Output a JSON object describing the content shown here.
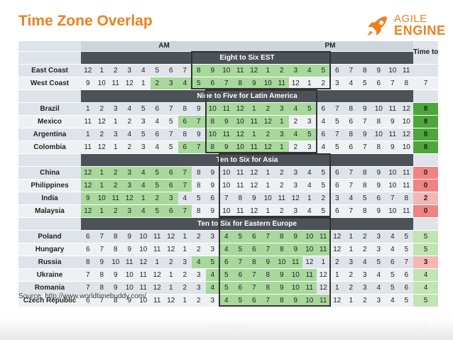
{
  "title": "Time Zone Overlap",
  "logo": {
    "line1": "AGILE",
    "line2": "ENGINE"
  },
  "header": {
    "am": "AM",
    "pm": "PM",
    "time_to_coop": "Time to coop."
  },
  "sections": [
    {
      "label": "Eight to Six EST",
      "rows": [
        {
          "name": "East Coast",
          "hours": [
            "12",
            "1",
            "2",
            "3",
            "4",
            "5",
            "6",
            "7",
            "8",
            "9",
            "10",
            "11",
            "12",
            "1",
            "2",
            "3",
            "4",
            "5",
            "6",
            "7",
            "8",
            "9",
            "10",
            "11"
          ],
          "coop": ""
        },
        {
          "name": "West Coast",
          "hours": [
            "9",
            "10",
            "11",
            "12",
            "1",
            "2",
            "3",
            "4",
            "5",
            "6",
            "7",
            "8",
            "9",
            "10",
            "11",
            "12",
            "1",
            "2",
            "3",
            "4",
            "5",
            "6",
            "7",
            "8"
          ],
          "coop": "7"
        }
      ]
    },
    {
      "label": "Nine to Five for Latin America",
      "rows": [
        {
          "name": "Brazil",
          "hours": [
            "1",
            "2",
            "3",
            "4",
            "5",
            "6",
            "7",
            "8",
            "9",
            "10",
            "11",
            "12",
            "1",
            "2",
            "3",
            "4",
            "5",
            "6",
            "7",
            "8",
            "9",
            "10",
            "11",
            "12"
          ],
          "coop": "8"
        },
        {
          "name": "Mexico",
          "hours": [
            "11",
            "12",
            "1",
            "2",
            "3",
            "4",
            "5",
            "6",
            "7",
            "8",
            "9",
            "10",
            "11",
            "12",
            "1",
            "2",
            "3",
            "4",
            "5",
            "6",
            "7",
            "8",
            "9",
            "10"
          ],
          "coop": "8"
        },
        {
          "name": "Argentina",
          "hours": [
            "1",
            "2",
            "3",
            "4",
            "5",
            "6",
            "7",
            "8",
            "9",
            "10",
            "11",
            "12",
            "1",
            "2",
            "3",
            "4",
            "5",
            "6",
            "7",
            "8",
            "9",
            "10",
            "11",
            "12"
          ],
          "coop": "8"
        },
        {
          "name": "Colombia",
          "hours": [
            "11",
            "12",
            "1",
            "2",
            "3",
            "4",
            "5",
            "6",
            "7",
            "8",
            "9",
            "10",
            "11",
            "12",
            "1",
            "2",
            "3",
            "4",
            "5",
            "6",
            "7",
            "8",
            "9",
            "10"
          ],
          "coop": "8"
        }
      ]
    },
    {
      "label": "Ten to Six for Asia",
      "rows": [
        {
          "name": "China",
          "hours": [
            "12",
            "1",
            "2",
            "3",
            "4",
            "5",
            "6",
            "7",
            "8",
            "9",
            "10",
            "11",
            "12",
            "1",
            "2",
            "3",
            "4",
            "5",
            "6",
            "7",
            "8",
            "9",
            "10",
            "11"
          ],
          "coop": "0"
        },
        {
          "name": "Philippines",
          "hours": [
            "12",
            "1",
            "2",
            "3",
            "4",
            "5",
            "6",
            "7",
            "8",
            "9",
            "10",
            "11",
            "12",
            "1",
            "2",
            "3",
            "4",
            "5",
            "6",
            "7",
            "8",
            "9",
            "10",
            "11"
          ],
          "coop": "0"
        },
        {
          "name": "India",
          "hours": [
            "9",
            "10",
            "11",
            "12",
            "1",
            "2",
            "3",
            "4",
            "5",
            "6",
            "7",
            "8",
            "9",
            "10",
            "11",
            "12",
            "1",
            "2",
            "3",
            "4",
            "5",
            "6",
            "7",
            "8"
          ],
          "coop": "2"
        },
        {
          "name": "Malaysia",
          "hours": [
            "12",
            "1",
            "2",
            "3",
            "4",
            "5",
            "6",
            "7",
            "8",
            "9",
            "10",
            "11",
            "12",
            "1",
            "2",
            "3",
            "4",
            "5",
            "6",
            "7",
            "8",
            "9",
            "10",
            "11"
          ],
          "coop": "0"
        }
      ]
    },
    {
      "label": "Ten to Six for Eastern Europe",
      "rows": [
        {
          "name": "Poland",
          "hours": [
            "6",
            "7",
            "8",
            "9",
            "10",
            "11",
            "12",
            "1",
            "2",
            "3",
            "4",
            "5",
            "6",
            "7",
            "8",
            "9",
            "10",
            "11",
            "12",
            "1",
            "2",
            "3",
            "4",
            "5"
          ],
          "coop": "5"
        },
        {
          "name": "Hungary",
          "hours": [
            "6",
            "7",
            "8",
            "9",
            "10",
            "11",
            "12",
            "1",
            "2",
            "3",
            "4",
            "5",
            "6",
            "7",
            "8",
            "9",
            "10",
            "11",
            "12",
            "1",
            "2",
            "3",
            "4",
            "5"
          ],
          "coop": "5"
        },
        {
          "name": "Russia",
          "hours": [
            "8",
            "9",
            "10",
            "11",
            "12",
            "1",
            "2",
            "3",
            "4",
            "5",
            "6",
            "7",
            "8",
            "9",
            "10",
            "11",
            "12",
            "1",
            "2",
            "3",
            "4",
            "5",
            "6",
            "7"
          ],
          "coop": "3"
        },
        {
          "name": "Ukraine",
          "hours": [
            "7",
            "8",
            "9",
            "10",
            "11",
            "12",
            "1",
            "2",
            "3",
            "4",
            "5",
            "6",
            "7",
            "8",
            "9",
            "10",
            "11",
            "12",
            "1",
            "2",
            "3",
            "4",
            "5",
            "6"
          ],
          "coop": "4"
        },
        {
          "name": "Romania",
          "hours": [
            "7",
            "8",
            "9",
            "10",
            "11",
            "12",
            "1",
            "2",
            "3",
            "4",
            "5",
            "6",
            "7",
            "8",
            "9",
            "10",
            "11",
            "12",
            "1",
            "2",
            "3",
            "4",
            "5",
            "6"
          ],
          "coop": "4"
        },
        {
          "name": "Czech Republic",
          "hours": [
            "6",
            "7",
            "8",
            "9",
            "10",
            "11",
            "12",
            "1",
            "2",
            "3",
            "4",
            "5",
            "6",
            "7",
            "8",
            "9",
            "10",
            "11",
            "12",
            "1",
            "2",
            "3",
            "4",
            "5"
          ],
          "coop": "5"
        }
      ]
    }
  ],
  "source": "Source: http://www.worldtimebuddy.com/",
  "footer": {
    "brand": "AgileEngine",
    "page": "13"
  },
  "colors": {
    "title": "#f0801e",
    "workday": "#a8d89c",
    "coop_high": "#4ea63a",
    "coop_mid": "#8ccc74",
    "coop_low": "#c2e3b4",
    "coop_zero": "#f08383",
    "coop_twoish": "#f6b6b6",
    "section_bar": "#4c5258"
  }
}
